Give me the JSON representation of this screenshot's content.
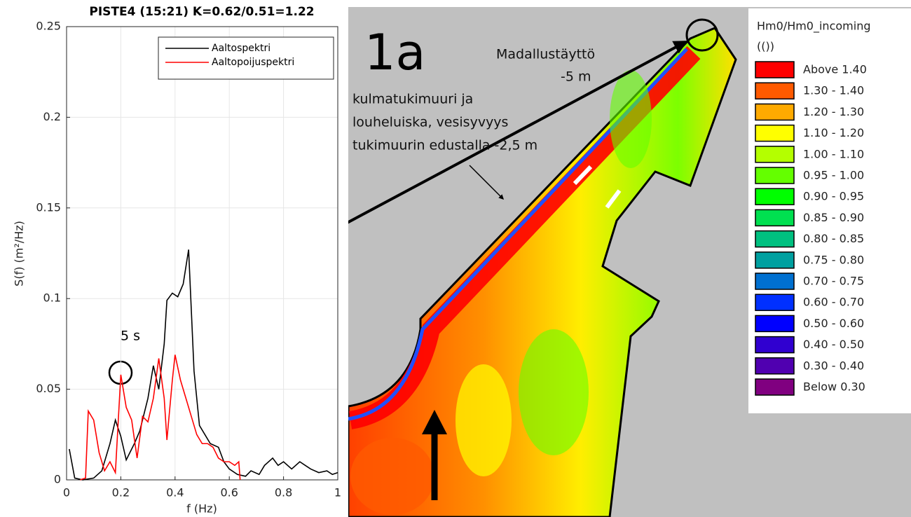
{
  "chart_data": {
    "type": "line",
    "title": "PISTE4 (15:21) K=0.62/0.51=1.22",
    "x_label": "f (Hz)",
    "y_label": "S(f) (m²/Hz)",
    "xlim": [
      0,
      1
    ],
    "ylim": [
      0,
      0.25
    ],
    "xticks": [
      0,
      0.2,
      0.4,
      0.6,
      0.8,
      1
    ],
    "yticks": [
      0,
      0.05,
      0.1,
      0.15,
      0.2,
      0.25
    ],
    "grid": true,
    "legend": "upper right",
    "annotations": [
      "5 s"
    ],
    "series": [
      {
        "name": "Aaltospektri",
        "color": "#000000",
        "x": [
          0.01,
          0.03,
          0.06,
          0.1,
          0.13,
          0.16,
          0.18,
          0.2,
          0.22,
          0.25,
          0.27,
          0.3,
          0.32,
          0.34,
          0.36,
          0.37,
          0.39,
          0.41,
          0.43,
          0.45,
          0.47,
          0.49,
          0.51,
          0.53,
          0.56,
          0.58,
          0.6,
          0.63,
          0.66,
          0.68,
          0.71,
          0.73,
          0.76,
          0.78,
          0.8,
          0.83,
          0.86,
          0.88,
          0.9,
          0.93,
          0.96,
          0.98,
          1.0
        ],
        "values": [
          0.017,
          0.001,
          0.0,
          0.001,
          0.005,
          0.02,
          0.033,
          0.024,
          0.011,
          0.02,
          0.027,
          0.045,
          0.063,
          0.05,
          0.075,
          0.099,
          0.103,
          0.101,
          0.108,
          0.127,
          0.06,
          0.03,
          0.025,
          0.02,
          0.018,
          0.01,
          0.006,
          0.003,
          0.002,
          0.005,
          0.003,
          0.008,
          0.012,
          0.008,
          0.01,
          0.006,
          0.01,
          0.008,
          0.006,
          0.004,
          0.005,
          0.003,
          0.004
        ]
      },
      {
        "name": "Aaltopoijuspektri",
        "color": "#ff0000",
        "x": [
          0.05,
          0.07,
          0.08,
          0.1,
          0.12,
          0.14,
          0.16,
          0.18,
          0.2,
          0.22,
          0.24,
          0.26,
          0.28,
          0.3,
          0.32,
          0.34,
          0.36,
          0.37,
          0.39,
          0.4,
          0.42,
          0.44,
          0.46,
          0.48,
          0.5,
          0.52,
          0.54,
          0.56,
          0.58,
          0.6,
          0.62,
          0.635,
          0.64
        ],
        "values": [
          0.0,
          0.001,
          0.038,
          0.033,
          0.015,
          0.005,
          0.01,
          0.004,
          0.058,
          0.04,
          0.033,
          0.012,
          0.035,
          0.032,
          0.045,
          0.067,
          0.045,
          0.022,
          0.055,
          0.069,
          0.055,
          0.045,
          0.035,
          0.025,
          0.02,
          0.02,
          0.018,
          0.012,
          0.01,
          0.01,
          0.008,
          0.01,
          0.0
        ]
      }
    ]
  },
  "map": {
    "label": "1a",
    "annotations": [
      "Madallustäyttö",
      "-5 m",
      "kulmatukimuuri ja",
      "louheluiska, vesisyvyys",
      "tukimuurin edustalla -2,5 m"
    ],
    "legend": {
      "title": "Hm0/Hm0_incoming",
      "unit": "(())",
      "items": [
        {
          "label": "Above 1.40",
          "color": "#ff0000"
        },
        {
          "label": "1.30 - 1.40",
          "color": "#ff5a00"
        },
        {
          "label": "1.20 - 1.30",
          "color": "#ffaa00"
        },
        {
          "label": "1.10 - 1.20",
          "color": "#ffff00"
        },
        {
          "label": "1.00 - 1.10",
          "color": "#b4ff00"
        },
        {
          "label": "0.95 - 1.00",
          "color": "#64ff00"
        },
        {
          "label": "0.90 - 0.95",
          "color": "#00ff00"
        },
        {
          "label": "0.85 - 0.90",
          "color": "#00e050"
        },
        {
          "label": "0.80 - 0.85",
          "color": "#00c080"
        },
        {
          "label": "0.75 - 0.80",
          "color": "#00a0a0"
        },
        {
          "label": "0.70 - 0.75",
          "color": "#0070d0"
        },
        {
          "label": "0.60 - 0.70",
          "color": "#0030ff"
        },
        {
          "label": "0.50 - 0.60",
          "color": "#0000ff"
        },
        {
          "label": "0.40 - 0.50",
          "color": "#3000d0"
        },
        {
          "label": "0.30 - 0.40",
          "color": "#5000b0"
        },
        {
          "label": "Below 0.30",
          "color": "#800080"
        }
      ]
    }
  }
}
